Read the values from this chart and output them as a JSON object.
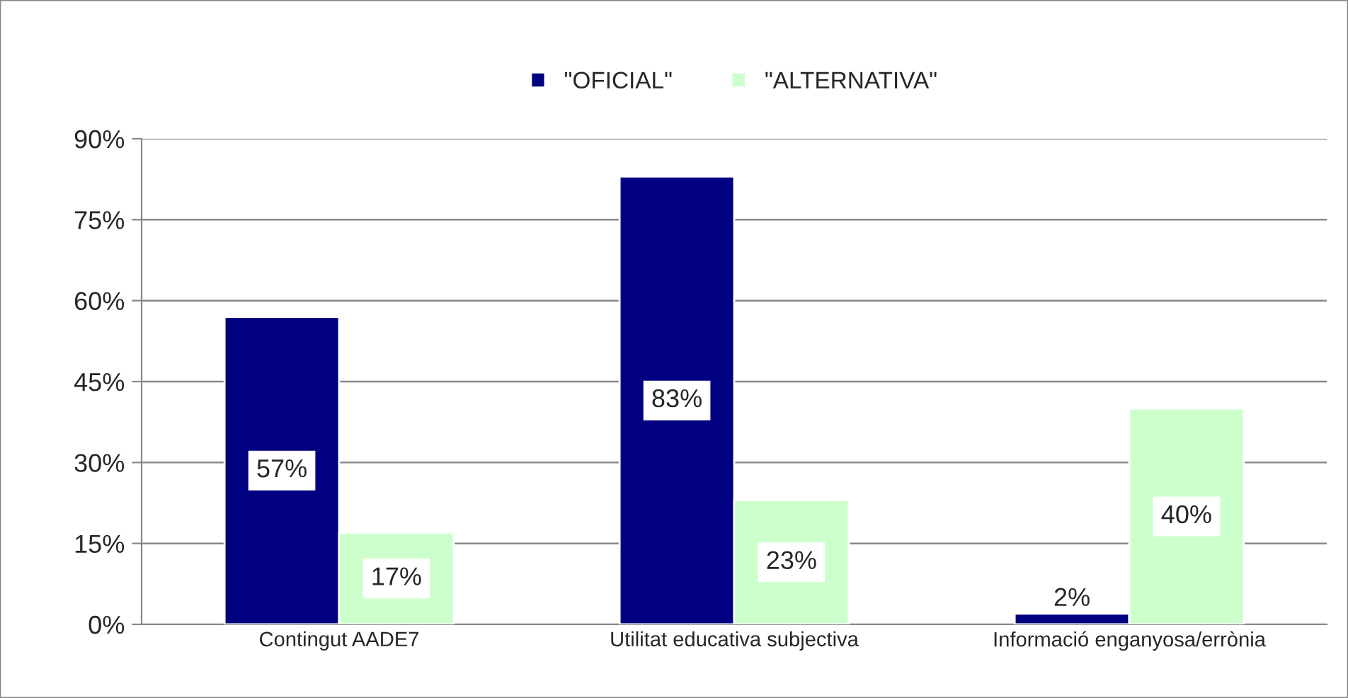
{
  "chart_data": {
    "type": "bar",
    "categories": [
      "Contingut AADE7",
      "Utilitat educativa subjectiva",
      "Informació enganyosa/errònia"
    ],
    "series": [
      {
        "name": "\"OFICIAL\"",
        "color": "#000080",
        "values": [
          57,
          83,
          2
        ],
        "value_labels": [
          "57%",
          "83%",
          "2%"
        ]
      },
      {
        "name": "\"ALTERNATIVA\"",
        "color": "#ccffcc",
        "values": [
          17,
          23,
          40
        ],
        "value_labels": [
          "17%",
          "23%",
          "40%"
        ]
      }
    ],
    "ylim": [
      0,
      90
    ],
    "yticks": [
      {
        "value": 0,
        "label": "0%"
      },
      {
        "value": 15,
        "label": "15%"
      },
      {
        "value": 30,
        "label": "30%"
      },
      {
        "value": 45,
        "label": "45%"
      },
      {
        "value": 60,
        "label": "60%"
      },
      {
        "value": 75,
        "label": "75%"
      },
      {
        "value": 90,
        "label": "90%"
      }
    ],
    "grid": "y",
    "legend": "top"
  }
}
